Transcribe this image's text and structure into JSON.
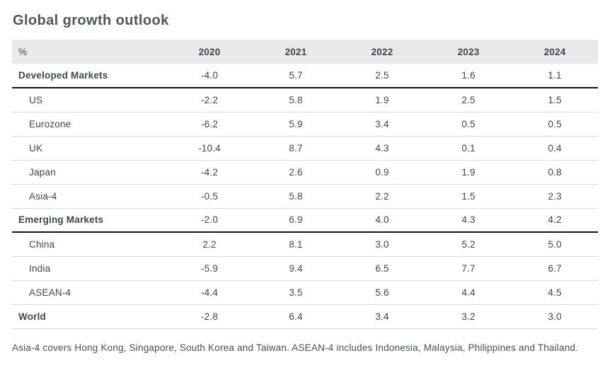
{
  "title": "Global growth outlook",
  "footnote": "Asia-4 covers Hong Kong, Singapore, South Korea and Taiwan. ASEAN-4 includes Indonesia, Malaysia, Philippines and Thailand.",
  "colors": {
    "title_text": "#4e5660",
    "header_background": "#e9e9e9",
    "heavy_rule": "#141414",
    "light_rule": "#d9d9d9"
  },
  "chart_data": {
    "type": "table",
    "title": "Global growth outlook",
    "unit": "%",
    "columns": [
      "%",
      "2020",
      "2021",
      "2022",
      "2023",
      "2024"
    ],
    "rows": [
      {
        "label": "Developed Markets",
        "style": "group",
        "values": [
          "-4.0",
          "5.7",
          "2.5",
          "1.6",
          "1.1"
        ]
      },
      {
        "label": "US",
        "style": "sub",
        "values": [
          "-2.2",
          "5.8",
          "1.9",
          "2.5",
          "1.5"
        ]
      },
      {
        "label": "Eurozone",
        "style": "sub",
        "values": [
          "-6.2",
          "5.9",
          "3.4",
          "0.5",
          "0.5"
        ]
      },
      {
        "label": "UK",
        "style": "sub",
        "values": [
          "-10.4",
          "8.7",
          "4.3",
          "0.1",
          "0.4"
        ]
      },
      {
        "label": "Japan",
        "style": "sub",
        "values": [
          "-4.2",
          "2.6",
          "0.9",
          "1.9",
          "0.8"
        ]
      },
      {
        "label": "Asia-4",
        "style": "sub",
        "values": [
          "-0.5",
          "5.8",
          "2.2",
          "1.5",
          "2.3"
        ]
      },
      {
        "label": "Emerging Markets",
        "style": "group",
        "values": [
          "-2.0",
          "6.9",
          "4.0",
          "4.3",
          "4.2"
        ]
      },
      {
        "label": "China",
        "style": "sub",
        "values": [
          "2.2",
          "8.1",
          "3.0",
          "5.2",
          "5.0"
        ]
      },
      {
        "label": "India",
        "style": "sub",
        "values": [
          "-5.9",
          "9.4",
          "6.5",
          "7.7",
          "6.7"
        ]
      },
      {
        "label": "ASEAN-4",
        "style": "sub",
        "values": [
          "-4.4",
          "3.5",
          "5.6",
          "4.4",
          "4.5"
        ]
      },
      {
        "label": "World",
        "style": "total",
        "values": [
          "-2.8",
          "6.4",
          "3.4",
          "3.2",
          "3.0"
        ]
      }
    ]
  }
}
